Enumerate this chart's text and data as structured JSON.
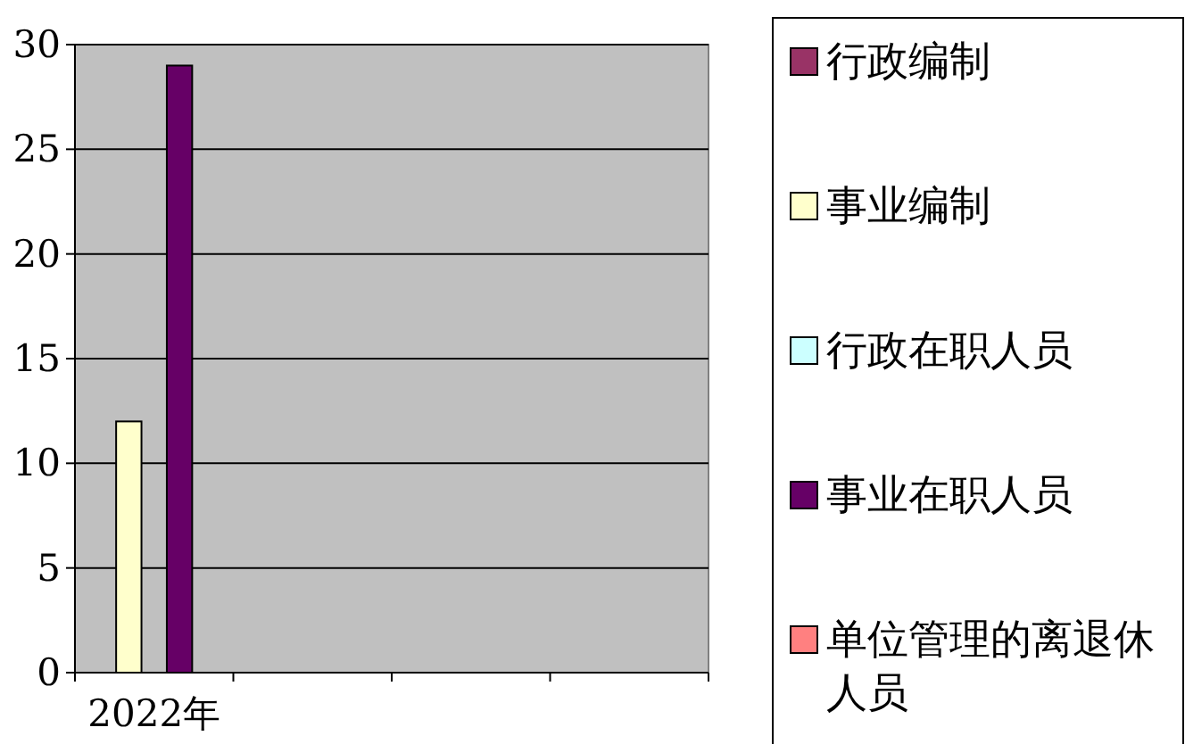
{
  "chart_data": {
    "type": "bar",
    "categories": [
      "2022年",
      null,
      null,
      null
    ],
    "series": [
      {
        "name": "行政编制",
        "color": "#993366",
        "values": [
          0,
          null,
          null,
          null
        ]
      },
      {
        "name": "事业编制",
        "color": "#ffffcc",
        "values": [
          12,
          null,
          null,
          null
        ]
      },
      {
        "name": "行政在职人员",
        "color": "#ccffff",
        "values": [
          0,
          null,
          null,
          null
        ]
      },
      {
        "name": "事业在职人员",
        "color": "#660066",
        "values": [
          29,
          null,
          null,
          null
        ]
      },
      {
        "name": "单位管理的离退休人员",
        "color": "#ff8080",
        "values": [
          0,
          null,
          null,
          null
        ]
      }
    ],
    "ylim": [
      0,
      30
    ],
    "yticks": [
      0,
      5,
      10,
      15,
      20,
      25,
      30
    ],
    "grid": "y",
    "legend": "right"
  }
}
